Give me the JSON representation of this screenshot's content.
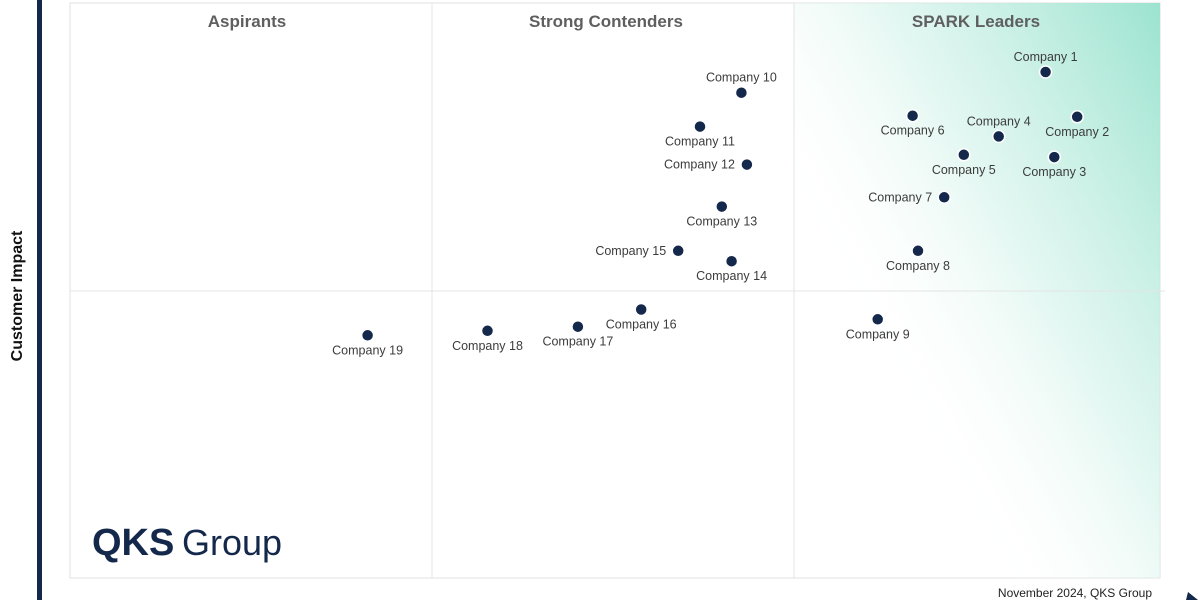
{
  "chart_data": {
    "type": "scatter",
    "title": "",
    "ylabel": "Customer Impact",
    "xlabel": "",
    "xlim": [
      0,
      100
    ],
    "ylim": [
      0,
      100
    ],
    "quadrants": [
      {
        "name": "Aspirants"
      },
      {
        "name": "Strong Contenders"
      },
      {
        "name": "SPARK Leaders"
      }
    ],
    "points": [
      {
        "label": "Company 1",
        "x": 89.5,
        "y": 88.0,
        "label_pos": "above"
      },
      {
        "label": "Company 2",
        "x": 92.4,
        "y": 80.2,
        "label_pos": "below"
      },
      {
        "label": "Company 3",
        "x": 90.3,
        "y": 73.2,
        "label_pos": "below"
      },
      {
        "label": "Company 4",
        "x": 85.2,
        "y": 76.8,
        "label_pos": "above"
      },
      {
        "label": "Company 5",
        "x": 82.0,
        "y": 73.6,
        "label_pos": "below"
      },
      {
        "label": "Company 6",
        "x": 77.3,
        "y": 80.4,
        "label_pos": "below"
      },
      {
        "label": "Company 7",
        "x": 80.2,
        "y": 66.2,
        "label_pos": "left"
      },
      {
        "label": "Company 8",
        "x": 77.8,
        "y": 56.9,
        "label_pos": "below"
      },
      {
        "label": "Company 9",
        "x": 74.1,
        "y": 45.0,
        "label_pos": "below"
      },
      {
        "label": "Company 10",
        "x": 61.6,
        "y": 84.4,
        "label_pos": "above"
      },
      {
        "label": "Company 11",
        "x": 57.8,
        "y": 78.5,
        "label_pos": "below"
      },
      {
        "label": "Company 12",
        "x": 62.1,
        "y": 71.9,
        "label_pos": "left"
      },
      {
        "label": "Company 13",
        "x": 59.8,
        "y": 64.6,
        "label_pos": "below"
      },
      {
        "label": "Company 14",
        "x": 60.7,
        "y": 55.1,
        "label_pos": "below"
      },
      {
        "label": "Company 15",
        "x": 55.8,
        "y": 56.9,
        "label_pos": "left"
      },
      {
        "label": "Company 16",
        "x": 52.4,
        "y": 46.7,
        "label_pos": "below"
      },
      {
        "label": "Company 17",
        "x": 46.6,
        "y": 43.7,
        "label_pos": "below"
      },
      {
        "label": "Company 18",
        "x": 38.3,
        "y": 43.0,
        "label_pos": "below"
      },
      {
        "label": "Company 19",
        "x": 27.3,
        "y": 42.2,
        "label_pos": "below"
      }
    ]
  },
  "logo": {
    "text_bold": "QKS",
    "text_light": "Group"
  },
  "footnote": "November 2024, QKS Group",
  "colors": {
    "point": "#14284b",
    "leaders_gradient": "#9be3cf",
    "axis_bar": "#14284b",
    "quad_label": "#5f5f5f"
  }
}
